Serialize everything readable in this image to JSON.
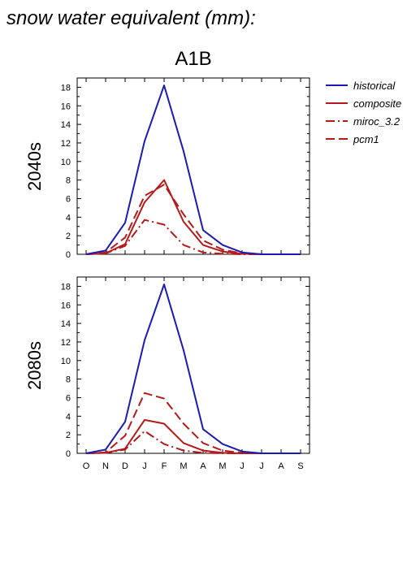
{
  "figure_title": "snow water equivalent (mm):",
  "scenario": "A1B",
  "legend": [
    {
      "name": "historical",
      "color": "#1a1ab4",
      "dash": "solid"
    },
    {
      "name": "composite",
      "color": "#b41a1a",
      "dash": "solid"
    },
    {
      "name": "miroc_3.2",
      "color": "#b41a1a",
      "dash": "dashdot"
    },
    {
      "name": "pcm1",
      "color": "#b41a1a",
      "dash": "dash"
    }
  ],
  "chart_data": [
    {
      "type": "line",
      "panel_label": "2040s",
      "categories": [
        "O",
        "N",
        "D",
        "J",
        "F",
        "M",
        "A",
        "M",
        "J",
        "J",
        "A",
        "S"
      ],
      "yticks": [
        "0",
        "2",
        "4",
        "6",
        "8",
        "10",
        "12",
        "14",
        "16",
        "18"
      ],
      "ylim": [
        0,
        19
      ],
      "series": [
        {
          "name": "historical",
          "values": [
            0,
            0.4,
            3.4,
            12.2,
            18.2,
            11.1,
            2.6,
            1.0,
            0.2,
            0,
            0,
            0
          ]
        },
        {
          "name": "composite",
          "values": [
            0,
            0.1,
            1.1,
            5.6,
            8.0,
            3.5,
            1.0,
            0.3,
            0.05,
            0,
            0,
            0
          ]
        },
        {
          "name": "miroc_3.2",
          "values": [
            0,
            0.1,
            0.9,
            3.7,
            3.2,
            1.0,
            0.2,
            0.05,
            0,
            0,
            0,
            0
          ]
        },
        {
          "name": "pcm1",
          "values": [
            0,
            0.2,
            1.8,
            6.3,
            7.5,
            4.3,
            1.5,
            0.5,
            0.1,
            0,
            0,
            0
          ]
        }
      ]
    },
    {
      "type": "line",
      "panel_label": "2080s",
      "categories": [
        "O",
        "N",
        "D",
        "J",
        "F",
        "M",
        "A",
        "M",
        "J",
        "J",
        "A",
        "S"
      ],
      "yticks": [
        "0",
        "2",
        "4",
        "6",
        "8",
        "10",
        "12",
        "14",
        "16",
        "18"
      ],
      "ylim": [
        0,
        19
      ],
      "series": [
        {
          "name": "historical",
          "values": [
            0,
            0.4,
            3.4,
            12.2,
            18.2,
            11.1,
            2.6,
            1.0,
            0.2,
            0,
            0,
            0
          ]
        },
        {
          "name": "composite",
          "values": [
            0,
            0.05,
            0.5,
            3.6,
            3.2,
            1.1,
            0.3,
            0.05,
            0,
            0,
            0,
            0
          ]
        },
        {
          "name": "miroc_3.2",
          "values": [
            0,
            0.05,
            0.4,
            2.4,
            1.0,
            0.3,
            0.05,
            0,
            0,
            0,
            0,
            0
          ]
        },
        {
          "name": "pcm1",
          "values": [
            0,
            0.1,
            1.9,
            6.5,
            5.9,
            3.2,
            1.1,
            0.3,
            0.05,
            0,
            0,
            0
          ]
        }
      ]
    }
  ]
}
